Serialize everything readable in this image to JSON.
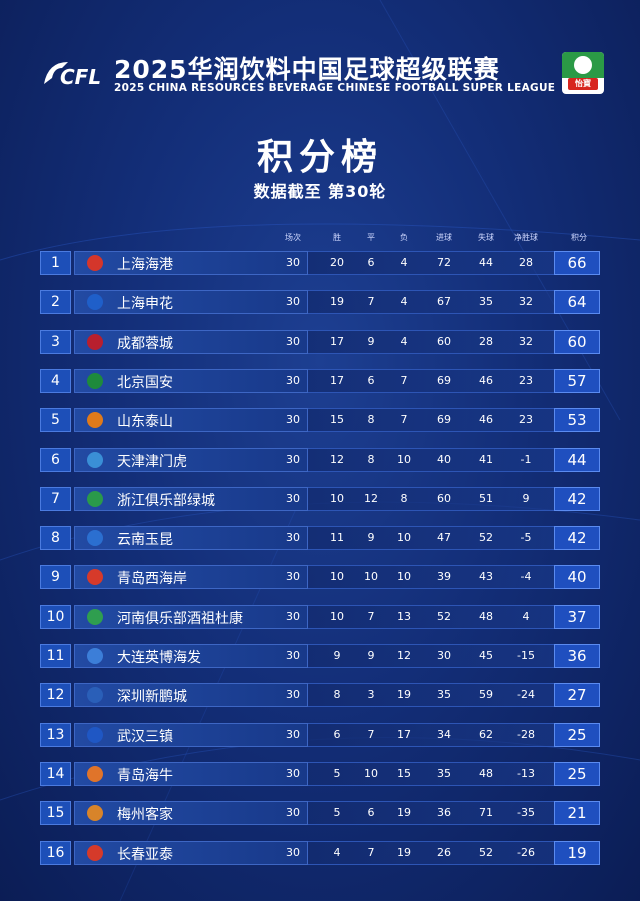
{
  "header": {
    "title_cn": "2025华润饮料中国足球超级联赛",
    "title_en": "2025 CHINA RESOURCES BEVERAGE CHINESE FOOTBALL SUPER LEAGUE",
    "logo_left_text": "CFL",
    "logo_right_text": "怡寶"
  },
  "board": {
    "title": "积分榜",
    "subtitle": "数据截至 第30轮"
  },
  "columns": [
    "场次",
    "胜",
    "平",
    "负",
    "进球",
    "失球",
    "净胜球",
    "积分"
  ],
  "rows": [
    {
      "rank": "1",
      "team": "上海海港",
      "played": "30",
      "w": "20",
      "d": "6",
      "l": "4",
      "gf": "72",
      "ga": "44",
      "gd": "28",
      "pts": "66",
      "badge_color": "#d4362b"
    },
    {
      "rank": "2",
      "team": "上海申花",
      "played": "30",
      "w": "19",
      "d": "7",
      "l": "4",
      "gf": "67",
      "ga": "35",
      "gd": "32",
      "pts": "64",
      "badge_color": "#1f5fc9"
    },
    {
      "rank": "3",
      "team": "成都蓉城",
      "played": "30",
      "w": "17",
      "d": "9",
      "l": "4",
      "gf": "60",
      "ga": "28",
      "gd": "32",
      "pts": "60",
      "badge_color": "#b81f2e"
    },
    {
      "rank": "4",
      "team": "北京国安",
      "played": "30",
      "w": "17",
      "d": "6",
      "l": "7",
      "gf": "69",
      "ga": "46",
      "gd": "23",
      "pts": "57",
      "badge_color": "#1e8a3c"
    },
    {
      "rank": "5",
      "team": "山东泰山",
      "played": "30",
      "w": "15",
      "d": "8",
      "l": "7",
      "gf": "69",
      "ga": "46",
      "gd": "23",
      "pts": "53",
      "badge_color": "#e07a1a"
    },
    {
      "rank": "6",
      "team": "天津津门虎",
      "played": "30",
      "w": "12",
      "d": "8",
      "l": "10",
      "gf": "40",
      "ga": "41",
      "gd": "-1",
      "pts": "44",
      "badge_color": "#3a8fd6"
    },
    {
      "rank": "7",
      "team": "浙江俱乐部绿城",
      "played": "30",
      "w": "10",
      "d": "12",
      "l": "8",
      "gf": "60",
      "ga": "51",
      "gd": "9",
      "pts": "42",
      "badge_color": "#2a9a4a"
    },
    {
      "rank": "8",
      "team": "云南玉昆",
      "played": "30",
      "w": "11",
      "d": "9",
      "l": "10",
      "gf": "47",
      "ga": "52",
      "gd": "-5",
      "pts": "42",
      "badge_color": "#2b6fd0"
    },
    {
      "rank": "9",
      "team": "青岛西海岸",
      "played": "30",
      "w": "10",
      "d": "10",
      "l": "10",
      "gf": "39",
      "ga": "43",
      "gd": "-4",
      "pts": "40",
      "badge_color": "#d63a2a"
    },
    {
      "rank": "10",
      "team": "河南俱乐部酒祖杜康",
      "played": "30",
      "w": "10",
      "d": "7",
      "l": "13",
      "gf": "52",
      "ga": "48",
      "gd": "4",
      "pts": "37",
      "badge_color": "#2f9e4f"
    },
    {
      "rank": "11",
      "team": "大连英博海发",
      "played": "30",
      "w": "9",
      "d": "9",
      "l": "12",
      "gf": "30",
      "ga": "45",
      "gd": "-15",
      "pts": "36",
      "badge_color": "#3c7ed8"
    },
    {
      "rank": "12",
      "team": "深圳新鹏城",
      "played": "30",
      "w": "8",
      "d": "3",
      "l": "19",
      "gf": "35",
      "ga": "59",
      "gd": "-24",
      "pts": "27",
      "badge_color": "#2a5fb8"
    },
    {
      "rank": "13",
      "team": "武汉三镇",
      "played": "30",
      "w": "6",
      "d": "7",
      "l": "17",
      "gf": "34",
      "ga": "62",
      "gd": "-28",
      "pts": "25",
      "badge_color": "#1f57c4"
    },
    {
      "rank": "14",
      "team": "青岛海牛",
      "played": "30",
      "w": "5",
      "d": "10",
      "l": "15",
      "gf": "35",
      "ga": "48",
      "gd": "-13",
      "pts": "25",
      "badge_color": "#e0742a"
    },
    {
      "rank": "15",
      "team": "梅州客家",
      "played": "30",
      "w": "5",
      "d": "6",
      "l": "19",
      "gf": "36",
      "ga": "71",
      "gd": "-35",
      "pts": "21",
      "badge_color": "#d8842a"
    },
    {
      "rank": "16",
      "team": "长春亚泰",
      "played": "30",
      "w": "4",
      "d": "7",
      "l": "19",
      "gf": "26",
      "ga": "52",
      "gd": "-26",
      "pts": "19",
      "badge_color": "#d53a2a"
    }
  ]
}
